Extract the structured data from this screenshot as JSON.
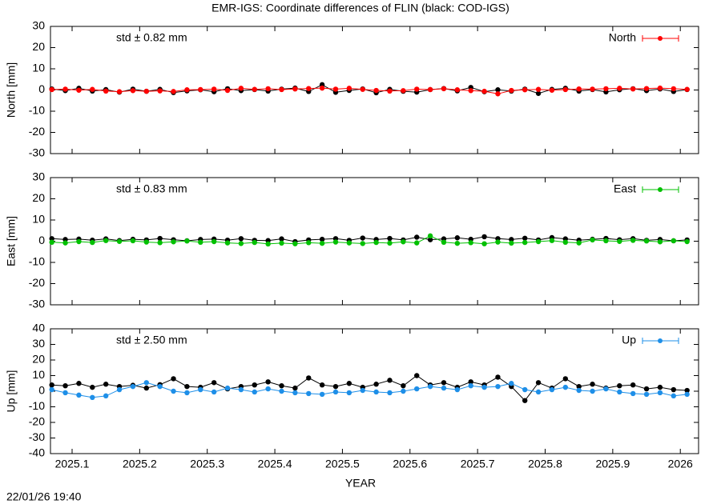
{
  "footer": "22/01/26 19:40",
  "chart_data": [
    {
      "type": "line",
      "title": "EMR-IGS: Coordinate differences of FLIN (black: COD-IGS)",
      "ylabel": "North [mm]",
      "annotation": "std ± 0.82 mm",
      "legend": "upper right",
      "xlim": [
        2025.068,
        2026.027
      ],
      "ylim": [
        -30,
        30
      ],
      "yticks": [
        -30,
        -20,
        -10,
        0,
        10,
        20,
        30
      ],
      "x": [
        2025.07,
        2025.09,
        2025.11,
        2025.13,
        2025.15,
        2025.17,
        2025.19,
        2025.21,
        2025.23,
        2025.25,
        2025.27,
        2025.29,
        2025.31,
        2025.33,
        2025.35,
        2025.37,
        2025.39,
        2025.41,
        2025.43,
        2025.45,
        2025.47,
        2025.49,
        2025.51,
        2025.53,
        2025.55,
        2025.57,
        2025.59,
        2025.61,
        2025.63,
        2025.65,
        2025.67,
        2025.69,
        2025.71,
        2025.73,
        2025.75,
        2025.77,
        2025.79,
        2025.81,
        2025.83,
        2025.85,
        2025.87,
        2025.89,
        2025.91,
        2025.93,
        2025.95,
        2025.97,
        2025.99,
        2026.01
      ],
      "series": [
        {
          "color": "#000000",
          "values": [
            0.5,
            -0.3,
            0.8,
            -0.5,
            0.2,
            -1,
            0.4,
            -0.6,
            0.3,
            -1.2,
            -0.4,
            0.1,
            -0.8,
            0.6,
            -0.3,
            0.2,
            -0.5,
            0.4,
            0.9,
            -0.7,
            2.5,
            -1.1,
            -0.2,
            0.5,
            -1.3,
            0.3,
            -0.6,
            -1,
            0.2,
            0.7,
            -0.4,
            1.2,
            -0.8,
            0.1,
            -0.5,
            0.4,
            -1.6,
            0.3,
            0.8,
            -0.5,
            0.2,
            -0.9,
            0.1,
            0.6,
            -0.3,
            0.5,
            -0.7,
            0.2
          ]
        },
        {
          "name": "North",
          "color": "#ff0000",
          "values": [
            0.2,
            0.4,
            -0.1,
            0.3,
            -0.5,
            -0.8,
            -0.3,
            -0.6,
            -0.4,
            -0.7,
            0.1,
            0.2,
            0.4,
            -0.2,
            0.8,
            0.3,
            0.6,
            0.2,
            0.5,
            0.7,
            0.9,
            0.4,
            0.8,
            0.3,
            -0.2,
            -0.5,
            -0.3,
            0.4,
            0.2,
            0.6,
            0.1,
            -0.3,
            -0.6,
            -1.8,
            -0.2,
            0.1,
            0.3,
            -0.1,
            0.2,
            0.5,
            0.4,
            0.6,
            0.8,
            0.5,
            0.7,
            0.9,
            0.6,
            0.3
          ]
        }
      ]
    },
    {
      "type": "line",
      "ylabel": "East [mm]",
      "annotation": "std ± 0.83 mm",
      "legend": "upper right",
      "xlim": [
        2025.068,
        2026.027
      ],
      "ylim": [
        -30,
        30
      ],
      "yticks": [
        -30,
        -20,
        -10,
        0,
        10,
        20,
        30
      ],
      "x": [
        2025.07,
        2025.09,
        2025.11,
        2025.13,
        2025.15,
        2025.17,
        2025.19,
        2025.21,
        2025.23,
        2025.25,
        2025.27,
        2025.29,
        2025.31,
        2025.33,
        2025.35,
        2025.37,
        2025.39,
        2025.41,
        2025.43,
        2025.45,
        2025.47,
        2025.49,
        2025.51,
        2025.53,
        2025.55,
        2025.57,
        2025.59,
        2025.61,
        2025.63,
        2025.65,
        2025.67,
        2025.69,
        2025.71,
        2025.73,
        2025.75,
        2025.77,
        2025.79,
        2025.81,
        2025.83,
        2025.85,
        2025.87,
        2025.89,
        2025.91,
        2025.93,
        2025.95,
        2025.97,
        2025.99,
        2026.01
      ],
      "series": [
        {
          "color": "#000000",
          "values": [
            1.2,
            0.8,
            1,
            0.5,
            1.1,
            0.3,
            0.9,
            0.6,
            1.3,
            0.7,
            0.2,
            0.8,
            1,
            0.5,
            1.2,
            0.4,
            0.3,
            1.1,
            -0.2,
            0.6,
            0.9,
            1.2,
            0.4,
            1.5,
            0.8,
            1.3,
            0.6,
            1.9,
            0.7,
            1.1,
            1.6,
            0.9,
            2.1,
            1.2,
            0.8,
            1.4,
            0.6,
            1.7,
            1.1,
            0.5,
            0.9,
            1.3,
            0.7,
            1.2,
            0.4,
            0.8,
            0.2,
            0.6
          ]
        },
        {
          "name": "East",
          "color": "#00c000",
          "values": [
            -0.5,
            -0.8,
            -0.2,
            -0.6,
            0.3,
            -0.1,
            0.2,
            -0.4,
            -0.7,
            -0.3,
            0.1,
            -0.5,
            -0.2,
            -0.8,
            -1.1,
            -0.6,
            -1.3,
            -0.9,
            -1.2,
            -0.7,
            -1,
            -0.4,
            -0.8,
            -1.1,
            -0.6,
            -0.9,
            -0.3,
            -0.8,
            2.5,
            -0.5,
            -1,
            -0.7,
            -1.2,
            -0.4,
            -0.9,
            -0.6,
            -0.2,
            0.3,
            -0.5,
            -0.8,
            0.6,
            0.2,
            -0.1,
            0.4,
            0.1,
            -0.3,
            0.2,
            -0.2
          ]
        }
      ]
    },
    {
      "type": "line",
      "ylabel": "Up [mm]",
      "xlabel": "YEAR",
      "annotation": "std ± 2.50 mm",
      "legend": "upper right",
      "xlim": [
        2025.068,
        2026.027
      ],
      "ylim": [
        -40,
        40
      ],
      "yticks": [
        -40,
        -30,
        -20,
        -10,
        0,
        10,
        20,
        30,
        40
      ],
      "xticks": [
        2025.1,
        2025.2,
        2025.3,
        2025.4,
        2025.5,
        2025.6,
        2025.7,
        2025.8,
        2025.9,
        2026
      ],
      "x": [
        2025.07,
        2025.09,
        2025.11,
        2025.13,
        2025.15,
        2025.17,
        2025.19,
        2025.21,
        2025.23,
        2025.25,
        2025.27,
        2025.29,
        2025.31,
        2025.33,
        2025.35,
        2025.37,
        2025.39,
        2025.41,
        2025.43,
        2025.45,
        2025.47,
        2025.49,
        2025.51,
        2025.53,
        2025.55,
        2025.57,
        2025.59,
        2025.61,
        2025.63,
        2025.65,
        2025.67,
        2025.69,
        2025.71,
        2025.73,
        2025.75,
        2025.77,
        2025.79,
        2025.81,
        2025.83,
        2025.85,
        2025.87,
        2025.89,
        2025.91,
        2025.93,
        2025.95,
        2025.97,
        2025.99,
        2026.01
      ],
      "series": [
        {
          "color": "#000000",
          "values": [
            4,
            3.5,
            5,
            2.5,
            4.5,
            3,
            3.8,
            2,
            4.2,
            8,
            3,
            2.5,
            5.5,
            1.5,
            3,
            4,
            6,
            3.5,
            2,
            8.5,
            4,
            3,
            5,
            2.5,
            4.5,
            7,
            3.5,
            10,
            4,
            5.5,
            2.5,
            6,
            4,
            9,
            3,
            -6,
            5.5,
            2,
            8,
            3,
            4.5,
            2,
            3.5,
            4,
            1.5,
            2.5,
            1,
            0.5
          ]
        },
        {
          "name": "Up",
          "color": "#1e8fe8",
          "values": [
            1,
            -1,
            -2.5,
            -4,
            -3,
            1,
            3,
            5.5,
            3,
            0,
            -1,
            1,
            -0.5,
            2,
            1,
            -0.5,
            1.5,
            0,
            -1,
            -1.5,
            -2,
            -0.5,
            -1,
            0.5,
            -0.5,
            -1,
            0,
            1.5,
            3,
            2,
            1,
            3.5,
            2.5,
            3,
            5,
            1,
            -0.5,
            1,
            2.5,
            0.5,
            0,
            1.5,
            -0.5,
            -1.5,
            -2,
            -1,
            -3,
            -2
          ]
        }
      ]
    }
  ]
}
